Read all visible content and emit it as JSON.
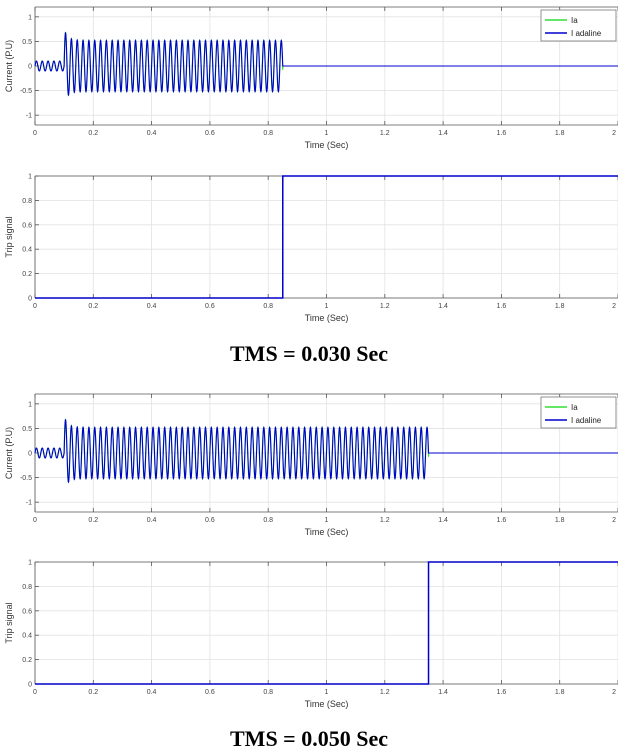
{
  "figure": {
    "captions": [
      "TMS = 0.030 Sec",
      "TMS = 0.050 Sec"
    ]
  },
  "chart_data": [
    {
      "type": "line",
      "xlabel": "Time (Sec)",
      "ylabel": "Current (P.U)",
      "xlim": [
        0,
        2
      ],
      "ylim": [
        -1.2,
        1.2
      ],
      "xticks": [
        0,
        0.2,
        0.4,
        0.6,
        0.8,
        1,
        1.2,
        1.4,
        1.6,
        1.8,
        2
      ],
      "yticks": [
        -1,
        -0.5,
        0,
        0.5,
        1
      ],
      "grid": true,
      "legend_position": "top-right",
      "series": [
        {
          "name": "Ia",
          "color": "#33dd33"
        },
        {
          "name": "I adaline",
          "color": "#0000cc"
        }
      ],
      "signal": {
        "prefault_amplitude": 0.1,
        "fault_time": 0.1,
        "fault_peak": 0.75,
        "fault_amplitude": 0.52,
        "frequency_hz": 50,
        "trip_time": 0.85
      }
    },
    {
      "type": "line",
      "xlabel": "Time (Sec)",
      "ylabel": "Trip signal",
      "xlim": [
        0,
        2
      ],
      "ylim": [
        0,
        1
      ],
      "xticks": [
        0,
        0.2,
        0.4,
        0.6,
        0.8,
        1,
        1.2,
        1.4,
        1.6,
        1.8,
        2
      ],
      "yticks": [
        0,
        0.2,
        0.4,
        0.6,
        0.8,
        1
      ],
      "grid": true,
      "series": [
        {
          "color": "#0000cc",
          "x": [
            0,
            0.85,
            0.85,
            2
          ],
          "y": [
            0,
            0,
            1,
            1
          ]
        }
      ]
    },
    {
      "type": "line",
      "xlabel": "Time (Sec)",
      "ylabel": "Current (P.U)",
      "xlim": [
        0,
        2
      ],
      "ylim": [
        -1.2,
        1.2
      ],
      "xticks": [
        0,
        0.2,
        0.4,
        0.6,
        0.8,
        1,
        1.2,
        1.4,
        1.6,
        1.8,
        2
      ],
      "yticks": [
        -1,
        -0.5,
        0,
        0.5,
        1
      ],
      "grid": true,
      "legend_position": "top-right",
      "series": [
        {
          "name": "Ia",
          "color": "#33dd33"
        },
        {
          "name": "I adaline",
          "color": "#0000cc"
        }
      ],
      "signal": {
        "prefault_amplitude": 0.1,
        "fault_time": 0.1,
        "fault_peak": 0.75,
        "fault_amplitude": 0.52,
        "frequency_hz": 50,
        "trip_time": 1.35
      }
    },
    {
      "type": "line",
      "xlabel": "Time (Sec)",
      "ylabel": "Trip signal",
      "xlim": [
        0,
        2
      ],
      "ylim": [
        0,
        1
      ],
      "xticks": [
        0,
        0.2,
        0.4,
        0.6,
        0.8,
        1,
        1.2,
        1.4,
        1.6,
        1.8,
        2
      ],
      "yticks": [
        0,
        0.2,
        0.4,
        0.6,
        0.8,
        1
      ],
      "grid": true,
      "series": [
        {
          "color": "#0000cc",
          "x": [
            0,
            1.35,
            1.35,
            2
          ],
          "y": [
            0,
            0,
            1,
            1
          ]
        }
      ]
    }
  ]
}
